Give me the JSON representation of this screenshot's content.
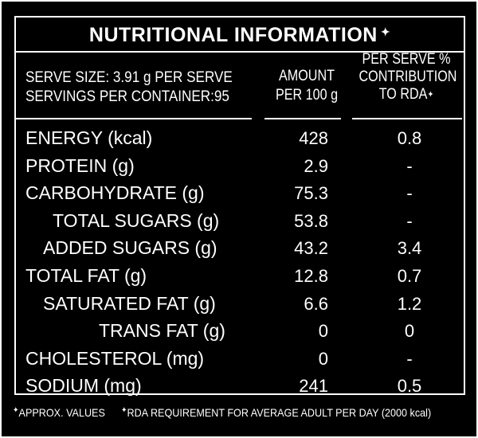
{
  "label": {
    "title": "NUTRITIONAL INFORMATION",
    "title_mark": "✦",
    "serve_size": "SERVE SIZE: 3.91 g PER SERVE",
    "servings_per_container": "SERVINGS PER CONTAINER:95",
    "col_amount_line1": "AMOUNT",
    "col_amount_line2": "PER 100 g",
    "col_rda_line1": "PER SERVE %",
    "col_rda_line2": "CONTRIBUTION",
    "col_rda_line3": "TO RDA",
    "col_rda_mark": "✦",
    "rows": [
      {
        "name": "ENERGY (kcal)",
        "amount": "428",
        "rda": "0.8"
      },
      {
        "name": "PROTEIN (g)",
        "amount": "2.9",
        "rda": "-"
      },
      {
        "name": "CARBOHYDRATE (g)",
        "amount": "75.3",
        "rda": "-"
      },
      {
        "name": "TOTAL SUGARS (g)",
        "amount": "53.8",
        "rda": "-"
      },
      {
        "name": "ADDED SUGARS (g)",
        "amount": "43.2",
        "rda": "3.4"
      },
      {
        "name": "TOTAL FAT (g)",
        "amount": "12.8",
        "rda": "0.7"
      },
      {
        "name": "SATURATED FAT (g)",
        "amount": "6.6",
        "rda": "1.2"
      },
      {
        "name": "TRANS FAT (g)",
        "amount": "0",
        "rda": "0"
      },
      {
        "name": "CHOLESTEROL (mg)",
        "amount": "0",
        "rda": "-"
      },
      {
        "name": "SODIUM (mg)",
        "amount": "241",
        "rda": "0.5"
      }
    ],
    "footnote_approx": "APPROX. VALUES",
    "footnote_rda": "RDA REQUIREMENT FOR AVERAGE ADULT PER DAY (2000 kcal)",
    "footnote_mark_approx": "✦",
    "footnote_mark_rda": "✦"
  },
  "colors": {
    "background": "#000000",
    "text": "#ffffff"
  }
}
